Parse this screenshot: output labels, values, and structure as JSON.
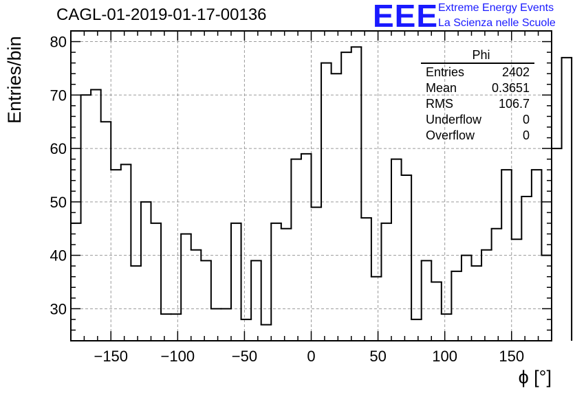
{
  "chart_data": {
    "type": "bar",
    "title": "CAGL-01-2019-01-17-00136",
    "xlabel": "ϕ [°]",
    "ylabel": "Entries/bin",
    "xlim": [
      -180,
      180
    ],
    "ylim": [
      24,
      82
    ],
    "grid": true,
    "x_ticks": [
      -150,
      -100,
      -50,
      0,
      50,
      100,
      150
    ],
    "x_tick_labels": [
      "−150",
      "−100",
      "−50",
      "0",
      "50",
      "100",
      "150"
    ],
    "y_ticks": [
      30,
      40,
      50,
      60,
      70,
      80
    ],
    "y_tick_labels": [
      "30",
      "40",
      "50",
      "60",
      "70",
      "80"
    ],
    "bin_width": 7.5,
    "bin_edges_start": -180,
    "values": [
      46,
      70,
      71,
      65,
      56,
      57,
      38,
      50,
      46,
      29,
      29,
      44,
      41,
      39,
      30,
      30,
      46,
      28,
      39,
      27,
      46,
      45,
      58,
      59,
      49,
      76,
      74,
      78,
      79,
      47,
      36,
      46,
      58,
      55,
      28,
      39,
      35,
      29,
      37,
      40,
      38,
      41,
      45,
      56,
      43,
      51,
      56,
      40,
      60,
      77
    ]
  },
  "stats_box": {
    "title": "Phi",
    "rows": [
      {
        "label": "Entries",
        "value": "2402"
      },
      {
        "label": "Mean",
        "value": "0.3651"
      },
      {
        "label": "RMS",
        "value": "106.7"
      },
      {
        "label": "Underflow",
        "value": "0"
      },
      {
        "label": "Overflow",
        "value": "0"
      }
    ]
  },
  "logo": {
    "mark": "EEE",
    "line1": "Extreme Energy Events",
    "line2": "La Scienza nelle Scuole",
    "color": "#1a1aff"
  },
  "colors": {
    "axis": "#000000",
    "grid": "#9a9a9a",
    "histogram": "#000000"
  }
}
